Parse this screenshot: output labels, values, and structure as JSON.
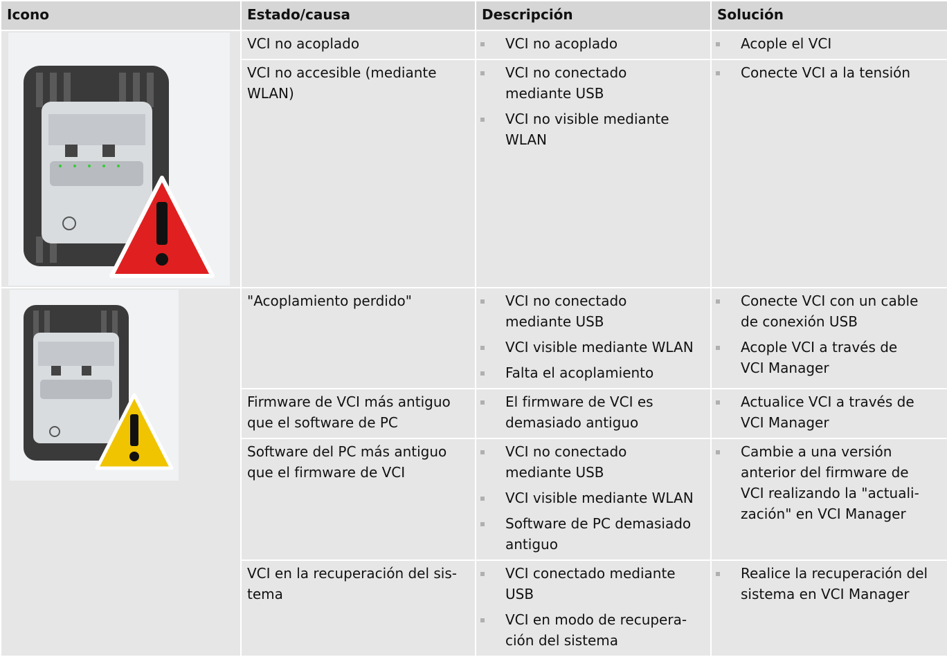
{
  "table": {
    "headers": [
      "Icono",
      "Estado/causa",
      "Descripción",
      "Solución"
    ],
    "groups": [
      {
        "rows": [
          {
            "cause": "VCI no acoplado",
            "description": [
              "VCI no acoplado"
            ],
            "solution": [
              "Acople el VCI"
            ]
          },
          {
            "cause": "VCI no accesible (mediante\nWLAN)",
            "description": [
              "VCI no conectado\nmediante USB",
              "VCI no visible mediante\nWLAN"
            ],
            "solution": [
              "Conecte VCI a la tensión"
            ]
          }
        ]
      },
      {
        "rows": [
          {
            "cause": "\"Acoplamiento perdido\"",
            "description": [
              "VCI no conectado\nmediante USB",
              "VCI visible mediante WLAN",
              "Falta el acoplamiento"
            ],
            "solution": [
              "Conecte VCI con un cable\nde conexión USB",
              "Acople VCI a través de\nVCI Manager"
            ]
          },
          {
            "cause": "Firmware de VCI más antiguo\nque el software de PC",
            "description": [
              "El firmware de VCI es\ndemasiado antiguo"
            ],
            "solution": [
              "Actualice VCI a través de\nVCI Manager"
            ]
          },
          {
            "cause": "Software del PC más antiguo\nque el firmware de VCI",
            "description": [
              "VCI no conectado\nmediante USB",
              "VCI visible mediante WLAN",
              "Software de PC demasiado\nantiguo"
            ],
            "solution": [
              "Cambie a una versión\nanterior del firmware de\nVCI realizando la \"actuali-\nzación\" en VCI Manager"
            ]
          },
          {
            "cause": "VCI en la recuperación del sis-\ntema",
            "description": [
              "VCI conectado mediante\nUSB",
              "VCI en modo de recupera-\nción del sistema"
            ],
            "solution": [
              "Realice la recuperación del\nsistema en VCI Manager"
            ]
          }
        ]
      }
    ]
  }
}
